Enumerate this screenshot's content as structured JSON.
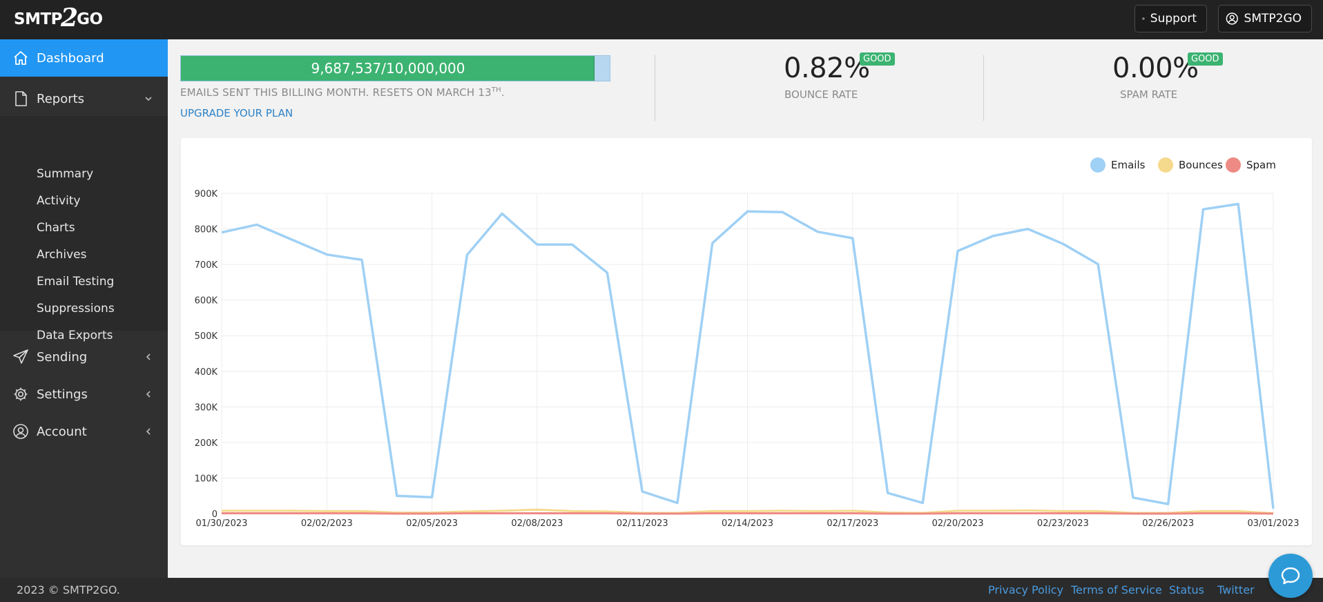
{
  "header": {
    "logo_text_left": "SMTP",
    "logo_text_mid": "2",
    "logo_text_right": "GO",
    "support_label": "Support",
    "account_label": "SMTP2GO"
  },
  "sidebar": {
    "dashboard": "Dashboard",
    "reports": "Reports",
    "report_items": [
      "Summary",
      "Activity",
      "Charts",
      "Archives",
      "Email Testing",
      "Suppressions",
      "Data Exports"
    ],
    "sending": "Sending",
    "settings": "Settings",
    "account": "Account"
  },
  "stats": {
    "usage_text": "9,687,537/10,000,000",
    "usage_fraction": 0.9687537,
    "billing_text_main": "EMAILS SENT THIS BILLING MONTH. RESETS ON MARCH 13",
    "billing_text_sup": "TH",
    "billing_text_end": ".",
    "upgrade_link": "UPGRADE YOUR PLAN",
    "bounce_rate_value": "0.82%",
    "bounce_rate_badge": "GOOD",
    "bounce_rate_label": "BOUNCE RATE",
    "spam_rate_value": "0.00%",
    "spam_rate_badge": "GOOD",
    "spam_rate_label": "SPAM RATE"
  },
  "colors": {
    "brand_blue": "#2196f3",
    "good_green": "#3cb371",
    "emails_series": "#9fd0f5",
    "bounces_series": "#f5d98c",
    "spam_series": "#ee8a84"
  },
  "chart_data": {
    "type": "line",
    "title": "",
    "xlabel": "",
    "ylabel": "",
    "ylim": [
      0,
      900000
    ],
    "y_ticks": [
      "0",
      "100K",
      "200K",
      "300K",
      "400K",
      "500K",
      "600K",
      "700K",
      "800K",
      "900K"
    ],
    "x_ticks": [
      "01/30/2023",
      "02/02/2023",
      "02/05/2023",
      "02/08/2023",
      "02/11/2023",
      "02/14/2023",
      "02/17/2023",
      "02/20/2023",
      "02/23/2023",
      "02/26/2023",
      "03/01/2023"
    ],
    "grid": true,
    "legend": "top-right",
    "x": [
      "01/30/2023",
      "01/31/2023",
      "02/01/2023",
      "02/02/2023",
      "02/03/2023",
      "02/04/2023",
      "02/05/2023",
      "02/06/2023",
      "02/07/2023",
      "02/08/2023",
      "02/09/2023",
      "02/10/2023",
      "02/11/2023",
      "02/12/2023",
      "02/13/2023",
      "02/14/2023",
      "02/15/2023",
      "02/16/2023",
      "02/17/2023",
      "02/18/2023",
      "02/19/2023",
      "02/20/2023",
      "02/21/2023",
      "02/22/2023",
      "02/23/2023",
      "02/24/2023",
      "02/25/2023",
      "02/26/2023",
      "02/27/2023",
      "02/28/2023",
      "03/01/2023"
    ],
    "series": [
      {
        "name": "Emails",
        "values": [
          790000,
          812000,
          770000,
          728000,
          713000,
          50000,
          46000,
          727000,
          843000,
          756000,
          756000,
          677000,
          62000,
          30000,
          760000,
          849000,
          847000,
          792000,
          774000,
          58000,
          30000,
          738000,
          780000,
          800000,
          758000,
          701000,
          45000,
          27000,
          855000,
          870000,
          14000
        ]
      },
      {
        "name": "Bounces",
        "values": [
          8000,
          8000,
          8000,
          7000,
          7000,
          3000,
          3000,
          6000,
          8000,
          11000,
          7000,
          6000,
          2000,
          2000,
          7000,
          7000,
          8000,
          7000,
          8000,
          3000,
          2000,
          8000,
          8000,
          9000,
          7000,
          7000,
          2000,
          2000,
          7000,
          7000,
          1000
        ]
      },
      {
        "name": "Spam",
        "values": [
          1000,
          1000,
          1000,
          1000,
          1000,
          0,
          0,
          1000,
          1000,
          1000,
          1000,
          1000,
          0,
          0,
          1000,
          1000,
          1000,
          1000,
          1000,
          0,
          0,
          1000,
          1000,
          1000,
          1000,
          1000,
          0,
          0,
          1000,
          1000,
          0
        ]
      }
    ]
  },
  "footer": {
    "copyright": "2023 © SMTP2GO.",
    "links": [
      "Privacy Policy",
      "Terms of Service",
      "Status",
      "Twitter"
    ]
  }
}
